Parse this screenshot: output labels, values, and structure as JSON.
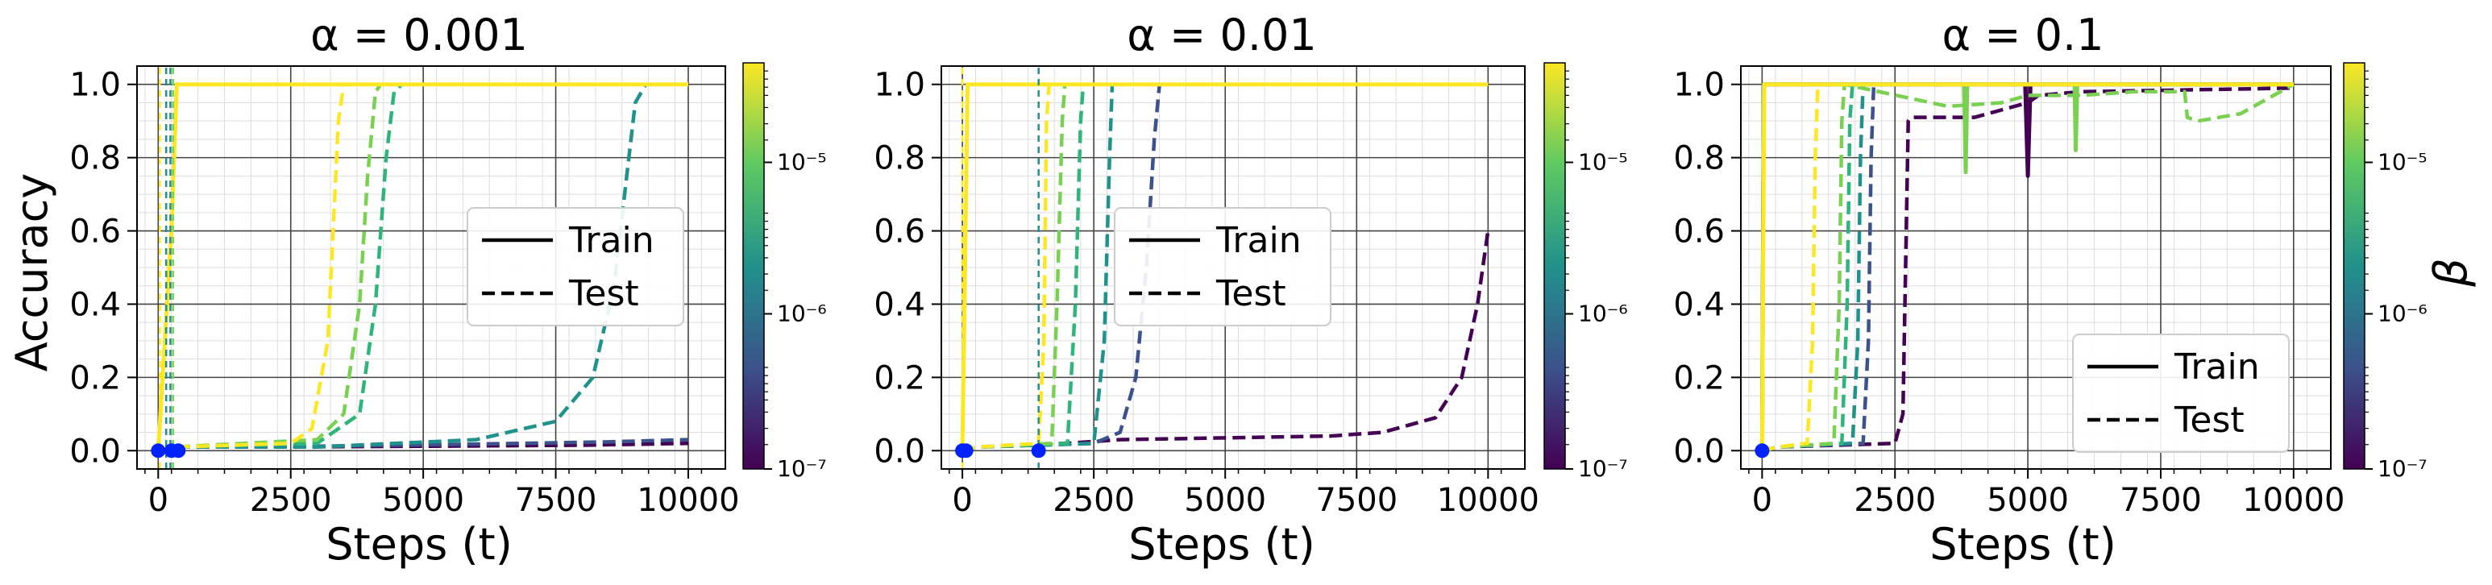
{
  "figure": {
    "ylabel": "Accuracy",
    "colorbar_label": "β"
  },
  "chart_data": [
    {
      "type": "line",
      "title": "α = 0.001",
      "xlabel": "Steps (t)",
      "ylabel": "Accuracy",
      "xlim": [
        -400,
        10700
      ],
      "ylim": [
        -0.05,
        1.05
      ],
      "xticks": [
        0,
        2500,
        5000,
        7500,
        10000
      ],
      "yticks": [
        0.0,
        0.2,
        0.4,
        0.6,
        0.8,
        1.0
      ],
      "grid": true,
      "legend": {
        "position": "center-right",
        "entries": [
          {
            "label": "Train",
            "style": "solid"
          },
          {
            "label": "Test",
            "style": "dashed"
          }
        ]
      },
      "colorbar": {
        "scale": "log",
        "ticks": [
          "10⁻⁵",
          "10⁻⁶",
          "10⁻⁷"
        ]
      },
      "series": [
        {
          "color": "#440154",
          "style": "dashed",
          "points": [
            [
              0,
              0.0
            ],
            [
              300,
              0.01
            ],
            [
              2000,
              0.01
            ],
            [
              5000,
              0.012
            ],
            [
              8000,
              0.015
            ],
            [
              10000,
              0.02
            ]
          ]
        },
        {
          "color": "#3b528b",
          "style": "dashed",
          "points": [
            [
              0,
              0.0
            ],
            [
              300,
              0.01
            ],
            [
              3000,
              0.012
            ],
            [
              6000,
              0.018
            ],
            [
              8500,
              0.024
            ],
            [
              10000,
              0.03
            ]
          ]
        },
        {
          "color": "#21918c",
          "style": "dashed",
          "points": [
            [
              0,
              0.0
            ],
            [
              300,
              0.01
            ],
            [
              3000,
              0.01
            ],
            [
              6000,
              0.03
            ],
            [
              7500,
              0.08
            ],
            [
              8200,
              0.2
            ],
            [
              8600,
              0.45
            ],
            [
              8800,
              0.7
            ],
            [
              9000,
              0.95
            ],
            [
              9200,
              1.0
            ],
            [
              10000,
              1.0
            ]
          ]
        },
        {
          "color": "#2fb47c",
          "style": "dashed",
          "points": [
            [
              0,
              0.0
            ],
            [
              300,
              0.01
            ],
            [
              3000,
              0.02
            ],
            [
              3800,
              0.1
            ],
            [
              4100,
              0.4
            ],
            [
              4300,
              0.8
            ],
            [
              4450,
              0.98
            ],
            [
              4600,
              1.0
            ],
            [
              10000,
              1.0
            ]
          ]
        },
        {
          "color": "#7ad151",
          "style": "dashed",
          "points": [
            [
              0,
              0.0
            ],
            [
              300,
              0.01
            ],
            [
              3000,
              0.03
            ],
            [
              3500,
              0.1
            ],
            [
              3800,
              0.4
            ],
            [
              3950,
              0.75
            ],
            [
              4100,
              0.98
            ],
            [
              4200,
              1.0
            ],
            [
              10000,
              1.0
            ]
          ]
        },
        {
          "color": "#fde725",
          "style": "dashed",
          "points": [
            [
              0,
              0.0
            ],
            [
              300,
              0.01
            ],
            [
              2500,
              0.02
            ],
            [
              2900,
              0.06
            ],
            [
              3200,
              0.3
            ],
            [
              3300,
              0.6
            ],
            [
              3400,
              0.9
            ],
            [
              3500,
              1.0
            ],
            [
              10000,
              1.0
            ]
          ]
        },
        {
          "color": "#fde725",
          "style": "solid",
          "points": [
            [
              0,
              0.0
            ],
            [
              250,
              0.6
            ],
            [
              350,
              1.0
            ],
            [
              10000,
              1.0
            ]
          ]
        },
        {
          "color": "#21918c",
          "style": "thin-dashed",
          "points": [
            [
              150,
              -0.05
            ],
            [
              150,
              1.05
            ]
          ]
        },
        {
          "color": "#21918c",
          "style": "thin-dashed",
          "points": [
            [
              230,
              -0.05
            ],
            [
              230,
              1.05
            ]
          ]
        },
        {
          "color": "#7ad151",
          "style": "thin-dashed",
          "points": [
            [
              280,
              -0.05
            ],
            [
              280,
              1.05
            ]
          ]
        },
        {
          "color": "#fde725",
          "style": "thin-dashed",
          "points": [
            [
              30,
              -0.05
            ],
            [
              30,
              1.05
            ]
          ]
        }
      ],
      "markers": [
        [
          0,
          0.0
        ],
        [
          250,
          0.0
        ],
        [
          380,
          0.0
        ]
      ],
      "marker_color": "#0022ff"
    },
    {
      "type": "line",
      "title": "α = 0.01",
      "xlabel": "Steps (t)",
      "ylabel": "",
      "xlim": [
        -400,
        10700
      ],
      "ylim": [
        -0.05,
        1.05
      ],
      "xticks": [
        0,
        2500,
        5000,
        7500,
        10000
      ],
      "yticks": [
        0.0,
        0.2,
        0.4,
        0.6,
        0.8,
        1.0
      ],
      "grid": true,
      "legend": {
        "position": "center",
        "entries": [
          {
            "label": "Train",
            "style": "solid"
          },
          {
            "label": "Test",
            "style": "dashed"
          }
        ]
      },
      "colorbar": {
        "scale": "log",
        "ticks": [
          "10⁻⁵",
          "10⁻⁶",
          "10⁻⁷"
        ]
      },
      "series": [
        {
          "color": "#440154",
          "style": "dashed",
          "points": [
            [
              0,
              0.0
            ],
            [
              300,
              0.01
            ],
            [
              2000,
              0.02
            ],
            [
              3000,
              0.03
            ],
            [
              5000,
              0.035
            ],
            [
              7000,
              0.04
            ],
            [
              8000,
              0.05
            ],
            [
              9000,
              0.09
            ],
            [
              9500,
              0.2
            ],
            [
              9800,
              0.4
            ],
            [
              10000,
              0.6
            ]
          ]
        },
        {
          "color": "#3b528b",
          "style": "dashed",
          "points": [
            [
              0,
              0.0
            ],
            [
              300,
              0.01
            ],
            [
              2500,
              0.02
            ],
            [
              3000,
              0.05
            ],
            [
              3300,
              0.2
            ],
            [
              3500,
              0.5
            ],
            [
              3650,
              0.85
            ],
            [
              3750,
              1.0
            ],
            [
              10000,
              1.0
            ]
          ]
        },
        {
          "color": "#21918c",
          "style": "dashed",
          "points": [
            [
              0,
              0.0
            ],
            [
              300,
              0.01
            ],
            [
              2500,
              0.02
            ],
            [
              2700,
              0.3
            ],
            [
              2800,
              0.8
            ],
            [
              2850,
              1.0
            ],
            [
              10000,
              1.0
            ]
          ]
        },
        {
          "color": "#2fb47c",
          "style": "dashed",
          "points": [
            [
              0,
              0.0
            ],
            [
              300,
              0.01
            ],
            [
              2000,
              0.02
            ],
            [
              2150,
              0.4
            ],
            [
              2250,
              0.9
            ],
            [
              2300,
              1.0
            ],
            [
              10000,
              1.0
            ]
          ]
        },
        {
          "color": "#7ad151",
          "style": "dashed",
          "points": [
            [
              0,
              0.0
            ],
            [
              300,
              0.01
            ],
            [
              1700,
              0.02
            ],
            [
              1800,
              0.4
            ],
            [
              1900,
              0.9
            ],
            [
              1950,
              1.0
            ],
            [
              10000,
              1.0
            ]
          ]
        },
        {
          "color": "#fde725",
          "style": "dashed",
          "points": [
            [
              0,
              0.0
            ],
            [
              300,
              0.01
            ],
            [
              1450,
              0.02
            ],
            [
              1550,
              0.3
            ],
            [
              1600,
              0.9
            ],
            [
              1650,
              1.0
            ],
            [
              10000,
              1.0
            ]
          ]
        },
        {
          "color": "#fde725",
          "style": "solid",
          "points": [
            [
              0,
              0.0
            ],
            [
              50,
              0.5
            ],
            [
              100,
              1.0
            ],
            [
              10000,
              1.0
            ]
          ]
        },
        {
          "color": "#fde725",
          "style": "thin-dashed",
          "points": [
            [
              0,
              -0.05
            ],
            [
              0,
              1.05
            ]
          ]
        },
        {
          "color": "#21918c",
          "style": "thin-dashed",
          "points": [
            [
              1450,
              -0.05
            ],
            [
              1450,
              1.05
            ]
          ]
        }
      ],
      "markers": [
        [
          0,
          0.0
        ],
        [
          70,
          0.0
        ],
        [
          1450,
          0.0
        ]
      ],
      "marker_color": "#0022ff"
    },
    {
      "type": "line",
      "title": "α = 0.1",
      "xlabel": "Steps (t)",
      "ylabel": "",
      "xlim": [
        -400,
        10700
      ],
      "ylim": [
        -0.05,
        1.05
      ],
      "xticks": [
        0,
        2500,
        5000,
        7500,
        10000
      ],
      "yticks": [
        0.0,
        0.2,
        0.4,
        0.6,
        0.8,
        1.0
      ],
      "grid": true,
      "legend": {
        "position": "lower-right",
        "entries": [
          {
            "label": "Train",
            "style": "solid"
          },
          {
            "label": "Test",
            "style": "dashed"
          }
        ]
      },
      "colorbar": {
        "scale": "log",
        "ticks": [
          "10⁻⁵",
          "10⁻⁶",
          "10⁻⁷"
        ],
        "label": "β"
      },
      "series": [
        {
          "color": "#440154",
          "style": "dashed",
          "points": [
            [
              0,
              0.0
            ],
            [
              300,
              0.01
            ],
            [
              2500,
              0.02
            ],
            [
              2650,
              0.1
            ],
            [
              2700,
              0.5
            ],
            [
              2750,
              0.9
            ],
            [
              2800,
              0.91
            ],
            [
              4000,
              0.91
            ],
            [
              4500,
              0.93
            ],
            [
              5000,
              0.95
            ],
            [
              5200,
              0.97
            ],
            [
              6000,
              0.98
            ],
            [
              10000,
              0.99
            ]
          ]
        },
        {
          "color": "#440154",
          "style": "solid",
          "points": [
            [
              0,
              0.0
            ],
            [
              30,
              1.0
            ],
            [
              4950,
              1.0
            ],
            [
              5000,
              0.75
            ],
            [
              5050,
              1.0
            ],
            [
              10000,
              1.0
            ]
          ]
        },
        {
          "color": "#3b528b",
          "style": "dashed",
          "points": [
            [
              0,
              0.0
            ],
            [
              300,
              0.01
            ],
            [
              1900,
              0.02
            ],
            [
              2000,
              0.3
            ],
            [
              2050,
              0.8
            ],
            [
              2100,
              1.0
            ],
            [
              10000,
              1.0
            ]
          ]
        },
        {
          "color": "#21918c",
          "style": "dashed",
          "points": [
            [
              0,
              0.0
            ],
            [
              300,
              0.01
            ],
            [
              1700,
              0.02
            ],
            [
              1800,
              0.3
            ],
            [
              1850,
              0.8
            ],
            [
              1900,
              1.0
            ],
            [
              10000,
              1.0
            ]
          ]
        },
        {
          "color": "#2fb47c",
          "style": "dashed",
          "points": [
            [
              0,
              0.0
            ],
            [
              300,
              0.01
            ],
            [
              1500,
              0.02
            ],
            [
              1600,
              0.4
            ],
            [
              1650,
              0.9
            ],
            [
              1700,
              1.0
            ],
            [
              10000,
              1.0
            ]
          ]
        },
        {
          "color": "#7ad151",
          "style": "dashed",
          "points": [
            [
              0,
              0.0
            ],
            [
              300,
              0.01
            ],
            [
              1350,
              0.02
            ],
            [
              1450,
              0.4
            ],
            [
              1500,
              0.9
            ],
            [
              1550,
              1.0
            ],
            [
              3500,
              0.94
            ],
            [
              4500,
              0.95
            ],
            [
              5000,
              0.97
            ],
            [
              6000,
              0.97
            ],
            [
              7000,
              0.98
            ],
            [
              7950,
              0.98
            ],
            [
              8000,
              0.91
            ],
            [
              8200,
              0.9
            ],
            [
              9000,
              0.92
            ],
            [
              9500,
              0.96
            ],
            [
              10000,
              1.0
            ]
          ]
        },
        {
          "color": "#7ad151",
          "style": "solid",
          "points": [
            [
              0,
              0.0
            ],
            [
              30,
              1.0
            ],
            [
              3800,
              1.0
            ],
            [
              3830,
              0.76
            ],
            [
              3860,
              1.0
            ],
            [
              5880,
              1.0
            ],
            [
              5900,
              0.82
            ],
            [
              5930,
              1.0
            ],
            [
              10000,
              1.0
            ]
          ]
        },
        {
          "color": "#fde725",
          "style": "dashed",
          "points": [
            [
              0,
              0.0
            ],
            [
              300,
              0.01
            ],
            [
              850,
              0.02
            ],
            [
              950,
              0.3
            ],
            [
              1000,
              0.8
            ],
            [
              1050,
              1.0
            ],
            [
              10000,
              1.0
            ]
          ]
        },
        {
          "color": "#fde725",
          "style": "solid",
          "points": [
            [
              0,
              0.0
            ],
            [
              20,
              0.5
            ],
            [
              40,
              1.0
            ],
            [
              10000,
              1.0
            ]
          ]
        }
      ],
      "markers": [
        [
          0,
          0.0
        ]
      ],
      "marker_color": "#0022ff"
    }
  ]
}
